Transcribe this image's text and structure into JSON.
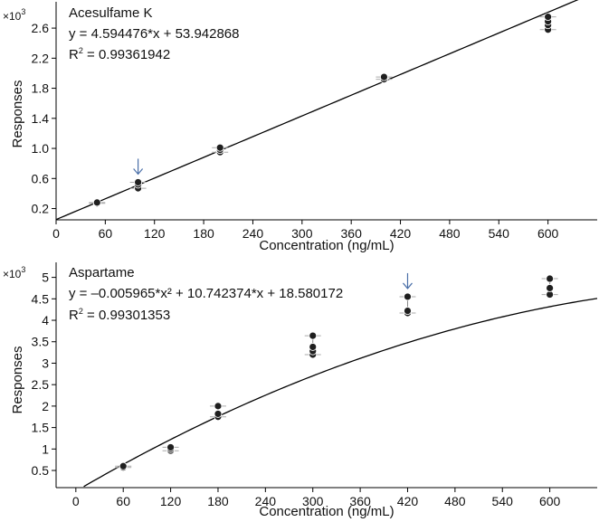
{
  "chart_data": [
    {
      "type": "scatter",
      "title": "Acesulfame K",
      "equation": "y = 4.594476*x + 53.942868",
      "r2_label": "R",
      "r2_exp": "2",
      "r2_rest": " = 0.99361942",
      "xlabel": "Concentration (ng/mL)",
      "ylabel": "Responses",
      "y_multiplier_base": "×10",
      "y_multiplier_exp": "3",
      "xlim": [
        0,
        660
      ],
      "ylim": [
        0.05,
        2.95
      ],
      "x_ticks": [
        "0",
        "60",
        "120",
        "180",
        "240",
        "300",
        "360",
        "420",
        "480",
        "540",
        "600"
      ],
      "y_ticks": [
        "0.2",
        "0.6",
        "1.0",
        "1.4",
        "1.8",
        "2.2",
        "2.6"
      ],
      "fit": {
        "model": "linear",
        "a": 4.594476,
        "b": 53.942868,
        "x_range": [
          0,
          660
        ]
      },
      "arrow_x": 100,
      "points": [
        {
          "x": 50,
          "y": 0.27
        },
        {
          "x": 50,
          "y": 0.28
        },
        {
          "x": 100,
          "y": 0.47
        },
        {
          "x": 100,
          "y": 0.52
        },
        {
          "x": 100,
          "y": 0.55
        },
        {
          "x": 200,
          "y": 0.95
        },
        {
          "x": 200,
          "y": 0.98
        },
        {
          "x": 200,
          "y": 1.01
        },
        {
          "x": 400,
          "y": 1.92
        },
        {
          "x": 400,
          "y": 1.95
        },
        {
          "x": 600,
          "y": 2.58
        },
        {
          "x": 600,
          "y": 2.64
        },
        {
          "x": 600,
          "y": 2.69
        },
        {
          "x": 600,
          "y": 2.75
        }
      ],
      "grid": false,
      "colors": {
        "points": "#1f1f1f",
        "fit": "#000000",
        "arrow": "#4a6fa8"
      }
    },
    {
      "type": "scatter",
      "title": "Aspartame",
      "equation": "y = –0.005965*x² + 10.742374*x + 18.580172",
      "r2_label": "R",
      "r2_exp": "2",
      "r2_rest": " = 0.99301353",
      "xlabel": "Concentration (ng/mL)",
      "ylabel": "Responses",
      "y_multiplier_base": "×10",
      "y_multiplier_exp": "3",
      "xlim": [
        -25,
        660
      ],
      "ylim": [
        0.1,
        5.35
      ],
      "x_ticks": [
        "0",
        "60",
        "120",
        "180",
        "240",
        "300",
        "360",
        "420",
        "480",
        "540",
        "600"
      ],
      "y_ticks": [
        "0.5",
        "1",
        "1.5",
        "2",
        "2.5",
        "3",
        "3.5",
        "4",
        "4.5",
        "5"
      ],
      "fit": {
        "model": "quadratic",
        "a": -0.005965,
        "b": 10.742374,
        "c": 18.580172,
        "x_range": [
          10,
          660
        ]
      },
      "arrow_x": 420,
      "points": [
        {
          "x": 60,
          "y": 0.57
        },
        {
          "x": 60,
          "y": 0.6
        },
        {
          "x": 120,
          "y": 0.96
        },
        {
          "x": 120,
          "y": 1.0
        },
        {
          "x": 120,
          "y": 1.04
        },
        {
          "x": 180,
          "y": 1.75
        },
        {
          "x": 180,
          "y": 1.82
        },
        {
          "x": 180,
          "y": 2.0
        },
        {
          "x": 300,
          "y": 3.2
        },
        {
          "x": 300,
          "y": 3.28
        },
        {
          "x": 300,
          "y": 3.38
        },
        {
          "x": 300,
          "y": 3.64
        },
        {
          "x": 420,
          "y": 4.17
        },
        {
          "x": 420,
          "y": 4.22
        },
        {
          "x": 420,
          "y": 4.55
        },
        {
          "x": 600,
          "y": 4.6
        },
        {
          "x": 600,
          "y": 4.75
        },
        {
          "x": 600,
          "y": 4.97
        }
      ],
      "grid": false,
      "colors": {
        "points": "#1f1f1f",
        "fit": "#000000",
        "arrow": "#4a6fa8"
      }
    }
  ]
}
